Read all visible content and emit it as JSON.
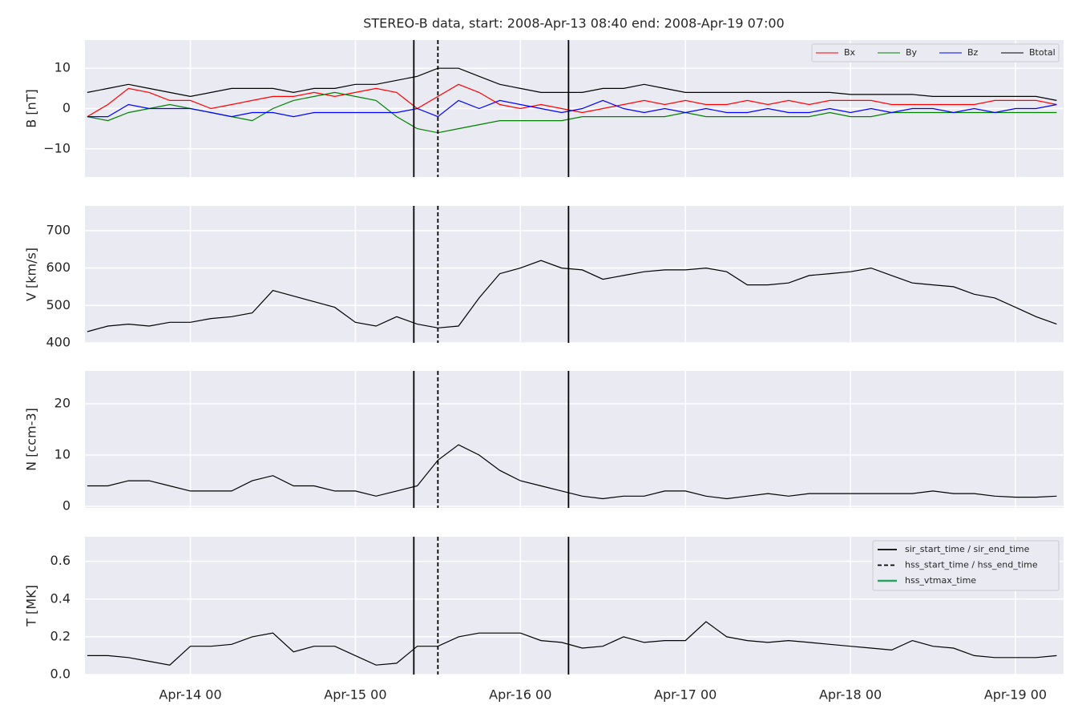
{
  "chart_data": {
    "type": "line",
    "title": "STEREO-B data, start: 2008-Apr-13 08:40  end: 2008-Apr-19 07:00",
    "xlim": [
      "Apr-13 08:40",
      "Apr-19 07:00"
    ],
    "xticks": [
      "Apr-14 00",
      "Apr-15 00",
      "Apr-16 00",
      "Apr-17 00",
      "Apr-18 00",
      "Apr-19 00"
    ],
    "grid": true,
    "x": [
      "Apr-13 09",
      "Apr-13 12",
      "Apr-13 15",
      "Apr-13 18",
      "Apr-13 21",
      "Apr-14 00",
      "Apr-14 03",
      "Apr-14 06",
      "Apr-14 09",
      "Apr-14 12",
      "Apr-14 15",
      "Apr-14 18",
      "Apr-14 21",
      "Apr-15 00",
      "Apr-15 03",
      "Apr-15 06",
      "Apr-15 09",
      "Apr-15 12",
      "Apr-15 15",
      "Apr-15 18",
      "Apr-15 21",
      "Apr-16 00",
      "Apr-16 03",
      "Apr-16 06",
      "Apr-16 09",
      "Apr-16 12",
      "Apr-16 15",
      "Apr-16 18",
      "Apr-16 21",
      "Apr-17 00",
      "Apr-17 03",
      "Apr-17 06",
      "Apr-17 09",
      "Apr-17 12",
      "Apr-17 15",
      "Apr-17 18",
      "Apr-17 21",
      "Apr-18 00",
      "Apr-18 03",
      "Apr-18 06",
      "Apr-18 09",
      "Apr-18 12",
      "Apr-18 15",
      "Apr-18 18",
      "Apr-18 21",
      "Apr-19 00",
      "Apr-19 03",
      "Apr-19 06"
    ],
    "panels": [
      {
        "ylabel": "B [nT]",
        "ylim": [
          -17,
          17
        ],
        "yticks": [
          {
            "value": -10,
            "label": "−10"
          },
          0,
          10
        ],
        "legend": "upper right",
        "series": [
          {
            "name": "Bx",
            "color": "#ff0000",
            "values": [
              -2,
              1,
              5,
              4,
              2,
              2,
              0,
              1,
              2,
              3,
              3,
              4,
              3,
              4,
              5,
              4,
              0,
              3,
              6,
              4,
              1,
              0,
              1,
              0,
              -1,
              0,
              1,
              2,
              1,
              2,
              1,
              1,
              2,
              1,
              2,
              1,
              2,
              2,
              2,
              1,
              1,
              1,
              1,
              1,
              2,
              2,
              2,
              1
            ]
          },
          {
            "name": "By",
            "color": "#008000",
            "values": [
              -2,
              -3,
              -1,
              0,
              1,
              0,
              -1,
              -2,
              -3,
              0,
              2,
              3,
              4,
              3,
              2,
              -2,
              -5,
              -6,
              -5,
              -4,
              -3,
              -3,
              -3,
              -3,
              -2,
              -2,
              -2,
              -2,
              -2,
              -1,
              -2,
              -2,
              -2,
              -2,
              -2,
              -2,
              -1,
              -2,
              -2,
              -1,
              -1,
              -1,
              -1,
              -1,
              -1,
              -1,
              -1,
              -1
            ]
          },
          {
            "name": "Bz",
            "color": "#0000ff",
            "values": [
              -2,
              -2,
              1,
              0,
              0,
              0,
              -1,
              -2,
              -1,
              -1,
              -2,
              -1,
              -1,
              -1,
              -1,
              -1,
              0,
              -2,
              2,
              0,
              2,
              1,
              0,
              -1,
              0,
              2,
              0,
              -1,
              0,
              -1,
              0,
              -1,
              -1,
              0,
              -1,
              -1,
              0,
              -1,
              0,
              -1,
              0,
              0,
              -1,
              0,
              -1,
              0,
              0,
              1
            ]
          },
          {
            "name": "Btotal",
            "color": "#000000",
            "values": [
              4,
              5,
              6,
              5,
              4,
              3,
              4,
              5,
              5,
              5,
              4,
              5,
              5,
              6,
              6,
              7,
              8,
              10,
              10,
              8,
              6,
              5,
              4,
              4,
              4,
              5,
              5,
              6,
              5,
              4,
              4,
              4,
              4,
              4,
              4,
              4,
              4,
              3.5,
              3.5,
              3.5,
              3.5,
              3,
              3,
              3,
              3,
              3,
              3,
              2
            ]
          }
        ]
      },
      {
        "ylabel": "V [km/s]",
        "ylim": [
          400,
          766
        ],
        "yticks": [
          400,
          500,
          600,
          700
        ],
        "series": [
          {
            "color": "#000000",
            "values": [
              430,
              445,
              450,
              445,
              455,
              455,
              465,
              470,
              480,
              540,
              525,
              510,
              495,
              455,
              445,
              470,
              450,
              440,
              445,
              520,
              585,
              600,
              620,
              600,
              595,
              570,
              580,
              590,
              595,
              595,
              600,
              590,
              555,
              555,
              560,
              580,
              585,
              590,
              600,
              580,
              560,
              555,
              550,
              530,
              520,
              495,
              470,
              450
            ]
          }
        ]
      },
      {
        "ylabel": "N [ccm-3]",
        "ylim": [
          -0.3,
          26.4
        ],
        "yticks": [
          0,
          10,
          20
        ],
        "series": [
          {
            "color": "#000000",
            "values": [
              4,
              4,
              5,
              5,
              4,
              3,
              3,
              3,
              5,
              6,
              4,
              4,
              3,
              3,
              2,
              3,
              4,
              9,
              12,
              10,
              7,
              5,
              4,
              3,
              2,
              1.5,
              2,
              2,
              3,
              3,
              2,
              1.5,
              2,
              2.5,
              2,
              2.5,
              2.5,
              2.5,
              2.5,
              2.5,
              2.5,
              3,
              2.5,
              2.5,
              2,
              1.8,
              1.8,
              2
            ]
          }
        ]
      },
      {
        "ylabel": "T [MK]",
        "ylim": [
          0,
          0.73
        ],
        "yticks": [
          {
            "value": 0,
            "label": "0.0"
          },
          0.2,
          0.4,
          0.6
        ],
        "series": [
          {
            "color": "#000000",
            "values": [
              0.1,
              0.1,
              0.09,
              0.07,
              0.05,
              0.15,
              0.15,
              0.16,
              0.2,
              0.22,
              0.12,
              0.15,
              0.15,
              0.1,
              0.05,
              0.06,
              0.15,
              0.15,
              0.2,
              0.22,
              0.22,
              0.22,
              0.18,
              0.17,
              0.14,
              0.15,
              0.2,
              0.17,
              0.18,
              0.18,
              0.28,
              0.2,
              0.18,
              0.17,
              0.18,
              0.17,
              0.16,
              0.15,
              0.14,
              0.13,
              0.18,
              0.15,
              0.14,
              0.1,
              0.09,
              0.09,
              0.09,
              0.1
            ]
          }
        ]
      }
    ],
    "markers_legend": "upper right",
    "markers": [
      {
        "name": "sir_start_time / sir_end_time",
        "style": "solid",
        "color": "#000000",
        "times": [
          "Apr-15 08:30",
          "Apr-16 07:00"
        ]
      },
      {
        "name": "hss_start_time / hss_end_time",
        "style": "dashed",
        "color": "#000000",
        "times": [
          "Apr-15 12:00"
        ]
      },
      {
        "name": "hss_vtmax_time",
        "style": "solid",
        "color": "#2ca25f",
        "times": []
      }
    ]
  }
}
